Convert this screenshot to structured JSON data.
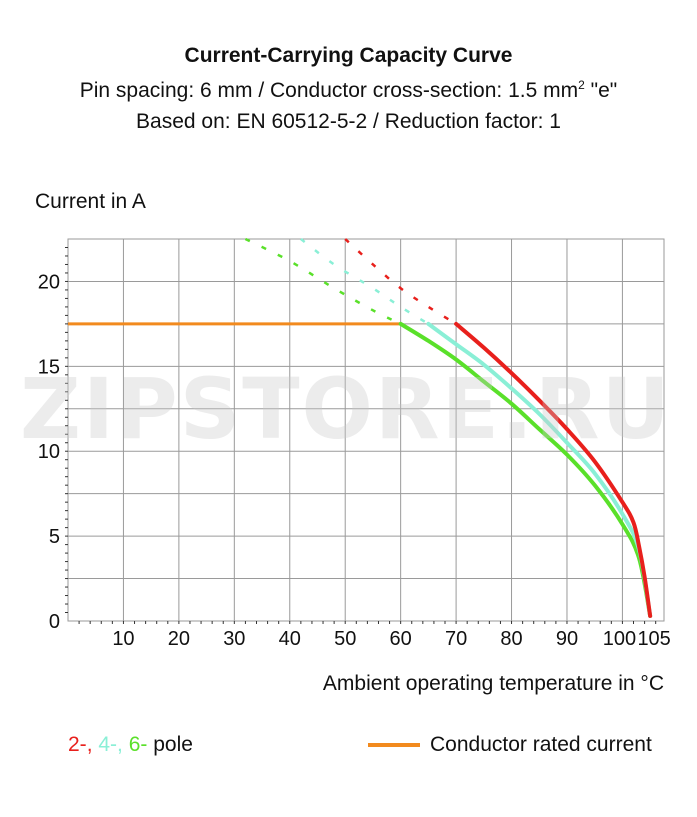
{
  "header": {
    "title": "Current-Carrying Capacity Curve",
    "line2_before_sup": "Pin spacing: 6 mm / Conductor cross-section: 1.5 mm",
    "line2_sup": "2",
    "line2_after_sup": " \"e\"",
    "line3": "Based on: EN 60512-5-2 / Reduction factor: 1"
  },
  "watermark": "ZIPSTORE.RU",
  "legend": {
    "pole_parts": [
      "2-",
      ", ",
      "4-",
      ", ",
      "6-",
      " pole"
    ],
    "rated_label": "Conductor rated current"
  },
  "colors": {
    "pole_2": "#e8201c",
    "pole_4": "#8aefd6",
    "pole_6": "#5ae02a",
    "rated": "#f28a1e",
    "grid": "#9a9a9a"
  },
  "chart_data": {
    "type": "line",
    "title": "Current-Carrying Capacity Curve",
    "xlabel": "Ambient operating temperature in °C",
    "ylabel": "Current in A",
    "xlim": [
      0,
      107.5
    ],
    "ylim": [
      0,
      22.5
    ],
    "xticks": [
      10,
      20,
      30,
      40,
      50,
      60,
      70,
      80,
      90,
      100,
      105
    ],
    "yticks": [
      0,
      5,
      10,
      15,
      20
    ],
    "grid": true,
    "series": [
      {
        "name": "2-",
        "color": "#e8201c",
        "points": [
          [
            70,
            17.5
          ],
          [
            75,
            16.1
          ],
          [
            80,
            14.6
          ],
          [
            85,
            13.0
          ],
          [
            90,
            11.3
          ],
          [
            95,
            9.4
          ],
          [
            100,
            7.0
          ],
          [
            102,
            5.8
          ],
          [
            103,
            4.4
          ],
          [
            104,
            2.6
          ],
          [
            105,
            0.3
          ]
        ],
        "dashed": [
          [
            50,
            22.5
          ],
          [
            55,
            21.0
          ],
          [
            60,
            19.6
          ],
          [
            65,
            18.5
          ],
          [
            70,
            17.5
          ]
        ]
      },
      {
        "name": "4-",
        "color": "#8aefd6",
        "points": [
          [
            65,
            17.5
          ],
          [
            70,
            16.3
          ],
          [
            75,
            15.1
          ],
          [
            80,
            13.7
          ],
          [
            85,
            12.2
          ],
          [
            90,
            10.5
          ],
          [
            95,
            8.7
          ],
          [
            100,
            6.3
          ],
          [
            103,
            4.2
          ],
          [
            105,
            0.3
          ]
        ],
        "dashed": [
          [
            42,
            22.5
          ],
          [
            48,
            21.0
          ],
          [
            55,
            19.6
          ],
          [
            60,
            18.5
          ],
          [
            65,
            17.5
          ]
        ]
      },
      {
        "name": "6-",
        "color": "#5ae02a",
        "points": [
          [
            60,
            17.5
          ],
          [
            65,
            16.5
          ],
          [
            70,
            15.4
          ],
          [
            75,
            14.1
          ],
          [
            80,
            12.8
          ],
          [
            85,
            11.3
          ],
          [
            90,
            9.8
          ],
          [
            95,
            8.0
          ],
          [
            100,
            5.7
          ],
          [
            103,
            3.7
          ],
          [
            105,
            0.3
          ]
        ],
        "dashed": [
          [
            32,
            22.5
          ],
          [
            40,
            21.2
          ],
          [
            48,
            19.6
          ],
          [
            55,
            18.3
          ],
          [
            60,
            17.5
          ]
        ]
      },
      {
        "name": "Conductor rated current",
        "color": "#f28a1e",
        "points": [
          [
            0,
            17.5
          ],
          [
            60,
            17.5
          ]
        ]
      }
    ]
  }
}
